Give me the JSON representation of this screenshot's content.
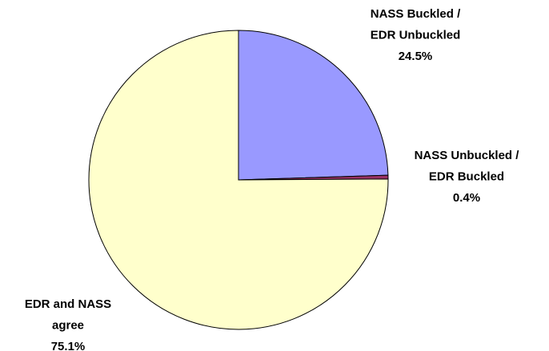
{
  "chart_data": {
    "type": "pie",
    "categories": [
      [
        "NASS Buckled /",
        "EDR Unbuckled"
      ],
      [
        "NASS Unbuckled /",
        "EDR Buckled"
      ],
      [
        "EDR and NASS",
        "agree"
      ]
    ],
    "values": [
      24.5,
      0.4,
      75.1
    ],
    "value_labels": [
      "24.5%",
      "0.4%",
      "75.1%"
    ],
    "colors": [
      "#9999ff",
      "#993366",
      "#ffffcc"
    ]
  }
}
